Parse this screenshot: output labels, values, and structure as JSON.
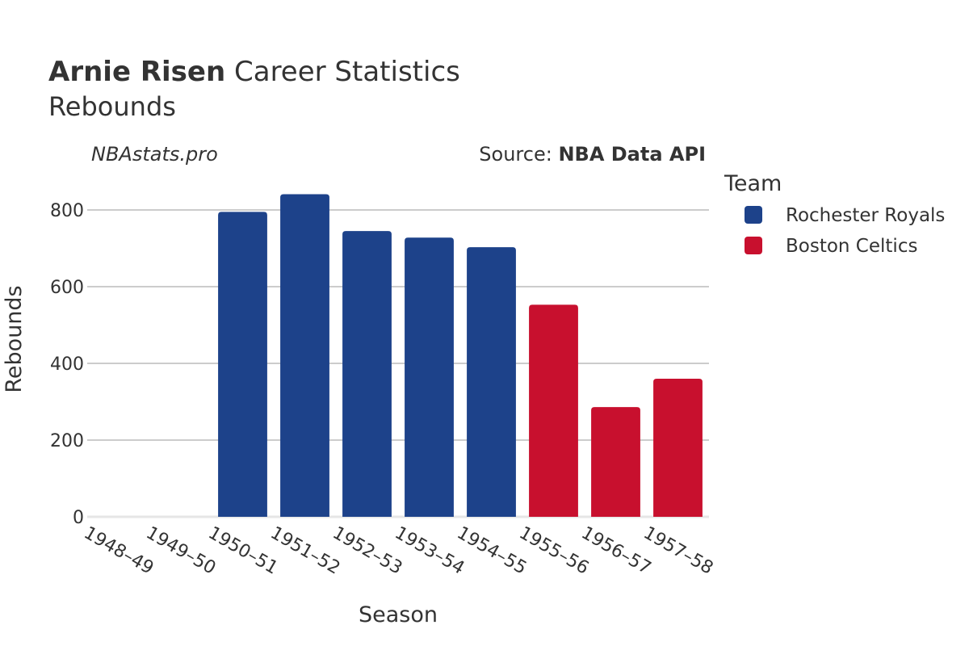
{
  "header": {
    "title_bold": "Arnie Risen",
    "title_rest": " Career Statistics",
    "subtitle": "Rebounds"
  },
  "watermark": "NBAstats.pro",
  "source": {
    "prefix": "Source: ",
    "name": "NBA Data API"
  },
  "legend": {
    "title": "Team",
    "items": [
      {
        "label": "Rochester Royals",
        "color": "#1d428a"
      },
      {
        "label": "Boston Celtics",
        "color": "#c8102e"
      }
    ]
  },
  "chart_data": {
    "type": "bar",
    "xlabel": "Season",
    "ylabel": "Rebounds",
    "ylim": [
      0,
      880
    ],
    "yticks": [
      0,
      200,
      400,
      600,
      800
    ],
    "grid": true,
    "legend_position": "right",
    "categories": [
      "1948–49",
      "1949–50",
      "1950–51",
      "1951–52",
      "1952–53",
      "1953–54",
      "1954–55",
      "1955–56",
      "1956–57",
      "1957–58"
    ],
    "series": [
      {
        "name": "Rochester Royals",
        "color": "#1d428a",
        "values": [
          null,
          null,
          795,
          841,
          745,
          728,
          703,
          null,
          null,
          null
        ]
      },
      {
        "name": "Boston Celtics",
        "color": "#c8102e",
        "values": [
          null,
          null,
          null,
          null,
          null,
          null,
          null,
          553,
          286,
          360
        ]
      }
    ]
  }
}
